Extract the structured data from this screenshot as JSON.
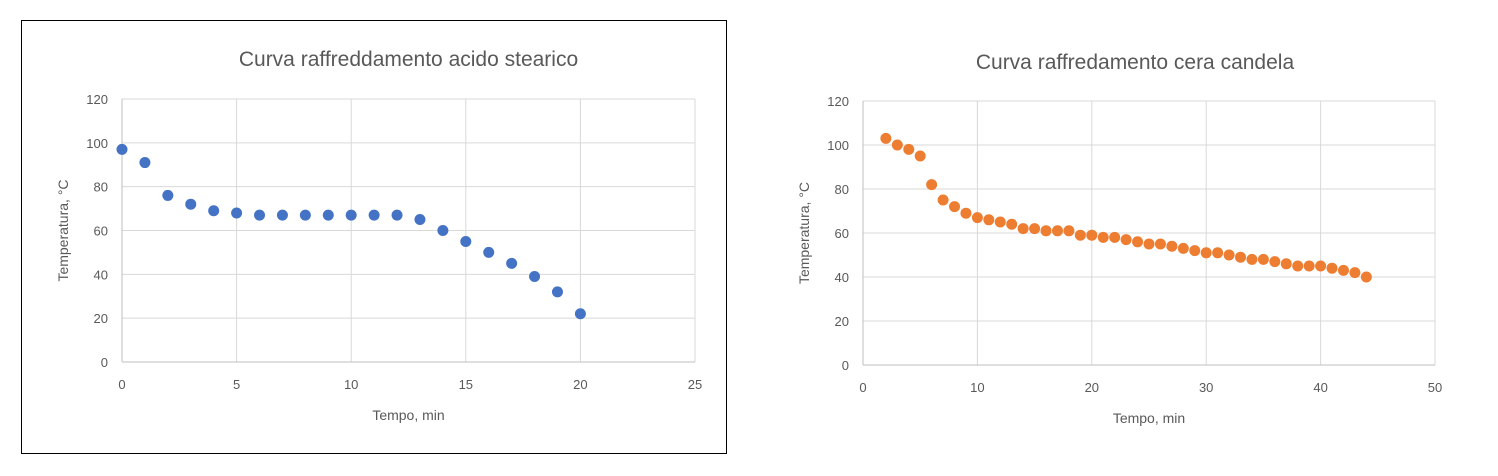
{
  "chart_data": [
    {
      "type": "scatter",
      "title": "Curva raffreddamento acido stearico",
      "xlabel": "Tempo, min",
      "ylabel": "Temperatura, °C",
      "xlim": [
        0,
        25
      ],
      "ylim": [
        0,
        120
      ],
      "xticks": [
        0,
        5,
        10,
        15,
        20,
        25
      ],
      "yticks": [
        0,
        20,
        40,
        60,
        80,
        100,
        120
      ],
      "grid": "vertical and horizontal",
      "legend": "none",
      "color": "#4472C4",
      "series": [
        {
          "x": [
            0,
            1,
            2,
            3,
            4,
            5,
            6,
            7,
            8,
            9,
            10,
            11,
            12,
            13,
            14,
            15,
            16,
            17,
            18,
            19,
            20
          ],
          "y": [
            97,
            91,
            76,
            72,
            69,
            68,
            67,
            67,
            67,
            67,
            67,
            67,
            67,
            65,
            60,
            55,
            50,
            45,
            39,
            32,
            22
          ]
        }
      ]
    },
    {
      "type": "scatter",
      "title": "Curva raffredamento cera candela",
      "xlabel": "Tempo, min",
      "ylabel": "Temperatura, °C",
      "xlim": [
        0,
        50
      ],
      "ylim": [
        0,
        120
      ],
      "xticks": [
        0,
        10,
        20,
        30,
        40,
        50
      ],
      "yticks": [
        0,
        20,
        40,
        60,
        80,
        100,
        120
      ],
      "grid": "vertical and horizontal",
      "legend": "none",
      "color": "#ED7D31",
      "series": [
        {
          "x": [
            2,
            3,
            4,
            5,
            6,
            7,
            8,
            9,
            10,
            11,
            12,
            13,
            14,
            15,
            16,
            17,
            18,
            19,
            20,
            21,
            22,
            23,
            24,
            25,
            26,
            27,
            28,
            29,
            30,
            31,
            32,
            33,
            34,
            35,
            36,
            37,
            38,
            39,
            40,
            41,
            42,
            43,
            44
          ],
          "y": [
            103,
            100,
            98,
            95,
            82,
            75,
            72,
            69,
            67,
            66,
            65,
            64,
            62,
            62,
            61,
            61,
            61,
            59,
            59,
            58,
            58,
            57,
            56,
            55,
            55,
            54,
            53,
            52,
            51,
            51,
            50,
            49,
            48,
            48,
            47,
            46,
            45,
            45,
            45,
            44,
            43,
            42,
            40
          ]
        }
      ]
    }
  ]
}
